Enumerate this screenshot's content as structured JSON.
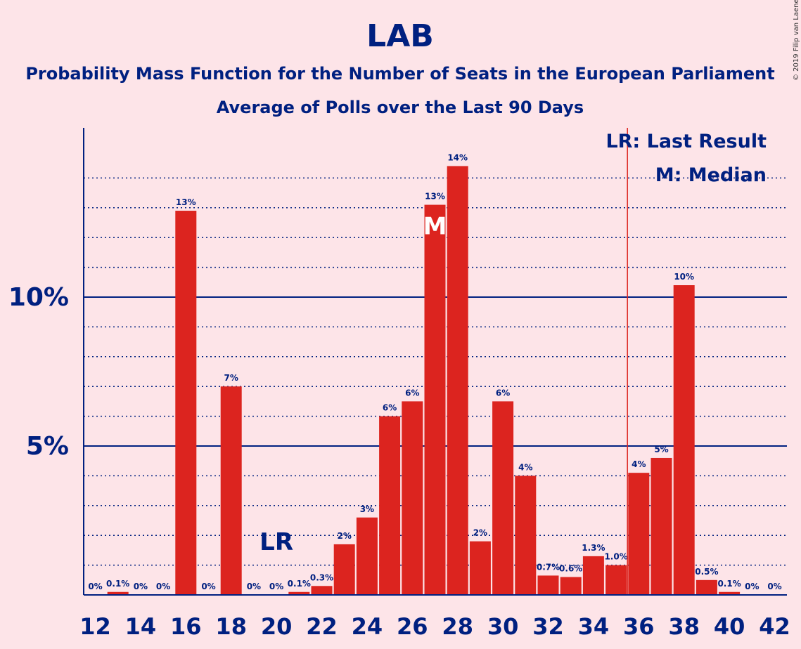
{
  "chart_data": {
    "type": "bar",
    "title": "LAB",
    "subtitle": "Probability Mass Function for the Number of Seats in the European Parliament",
    "subtitle2": "Average of Polls over the Last 90 Days",
    "copyright": "© 2019 Filip van Laenen",
    "x": [
      12,
      13,
      14,
      15,
      16,
      17,
      18,
      19,
      20,
      21,
      22,
      23,
      24,
      25,
      26,
      27,
      28,
      29,
      30,
      31,
      32,
      33,
      34,
      35,
      36,
      37,
      38,
      39,
      40,
      41,
      42
    ],
    "values": [
      0,
      0.1,
      0,
      0,
      12.9,
      0,
      7.0,
      0,
      0,
      0.1,
      0.3,
      1.7,
      2.6,
      6.0,
      6.5,
      13.1,
      14.4,
      1.8,
      6.5,
      4.0,
      0.65,
      0.6,
      1.3,
      1.0,
      4.1,
      4.6,
      10.4,
      0.5,
      0.1,
      0,
      0
    ],
    "labels": [
      "0%",
      "0.1%",
      "0%",
      "0%",
      "13%",
      "0%",
      "7%",
      "0%",
      "0%",
      "0.1%",
      "0.3%",
      "2%",
      "3%",
      "6%",
      "6%",
      "13%",
      "14%",
      "2%",
      "6%",
      "4%",
      "0.7%",
      "0.6%",
      "1.3%",
      "1.0%",
      "4%",
      "5%",
      "10%",
      "0.5%",
      "0.1%",
      "0%",
      "0%"
    ],
    "xticks": [
      "12",
      "14",
      "16",
      "18",
      "20",
      "22",
      "24",
      "26",
      "28",
      "30",
      "32",
      "34",
      "36",
      "38",
      "40",
      "42"
    ],
    "yticks": [
      {
        "value": 5,
        "label": "5%"
      },
      {
        "value": 10,
        "label": "10%"
      }
    ],
    "ylim": [
      0,
      15.7
    ],
    "last_result": 20,
    "last_result_marker": "LR",
    "median": 27,
    "median_marker": "M",
    "majority_line": 35.5,
    "legend": [
      "LR: Last Result",
      "M: Median"
    ],
    "colors": {
      "bar": "#dc241f",
      "axis": "#002080",
      "background": "#fde4e8",
      "line": "#dc241f"
    }
  }
}
